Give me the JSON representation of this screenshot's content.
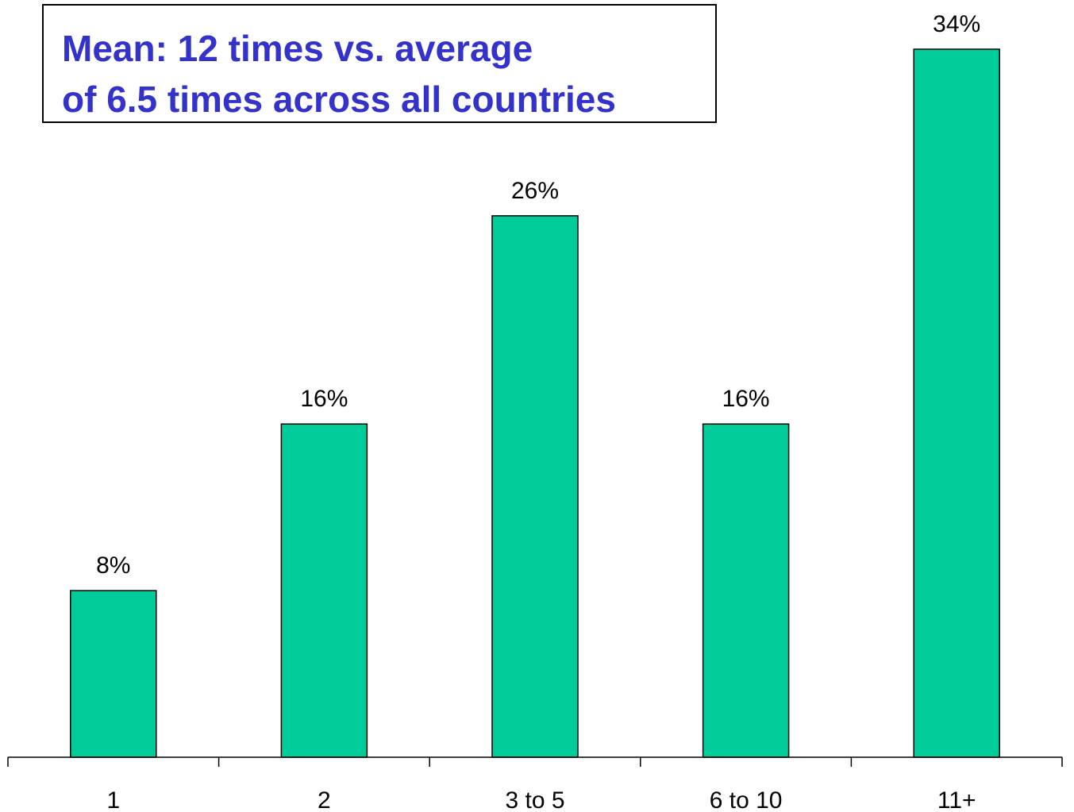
{
  "annotation": {
    "line1": "Mean: 12 times vs. average",
    "line2": "of 6.5 times across all countries",
    "color": "#3333cc"
  },
  "chart_data": {
    "type": "bar",
    "categories": [
      "1",
      "2",
      "3 to 5",
      "6 to 10",
      "11+"
    ],
    "values": [
      8,
      16,
      26,
      16,
      34
    ],
    "data_labels": [
      "8%",
      "16%",
      "26%",
      "16%",
      "34%"
    ],
    "value_unit": "%",
    "title": "",
    "xlabel": "",
    "ylabel": "",
    "ylim": [
      0,
      34
    ],
    "grid": false,
    "legend": "none",
    "bar_color": "#00cc99"
  }
}
